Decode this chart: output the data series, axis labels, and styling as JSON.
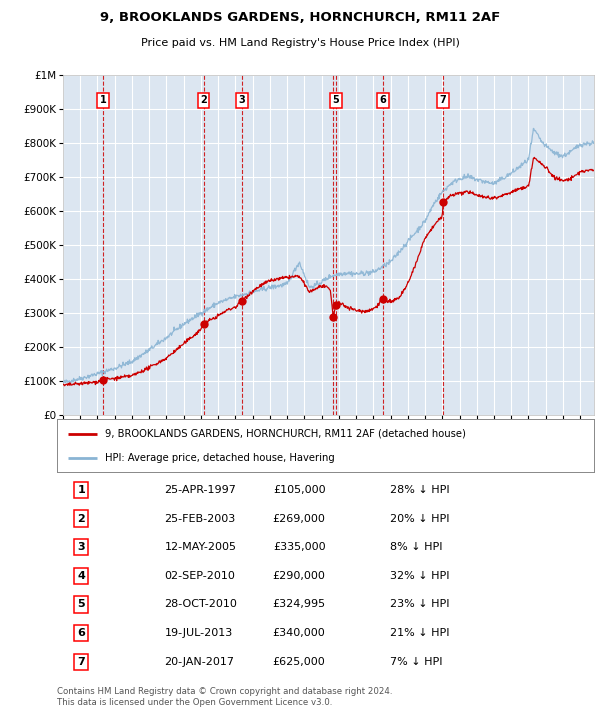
{
  "title_line1": "9, BROOKLANDS GARDENS, HORNCHURCH, RM11 2AF",
  "title_line2": "Price paid vs. HM Land Registry's House Price Index (HPI)",
  "background_color": "#ffffff",
  "plot_bg_color": "#dce6f1",
  "grid_color": "#ffffff",
  "hpi_line_color": "#8ab4d4",
  "price_line_color": "#cc0000",
  "dashed_line_color": "#cc0000",
  "sale_marker_color": "#cc0000",
  "ylim": [
    0,
    1000000
  ],
  "yticks": [
    0,
    100000,
    200000,
    300000,
    400000,
    500000,
    600000,
    700000,
    800000,
    900000,
    1000000
  ],
  "ytick_labels": [
    "£0",
    "£100K",
    "£200K",
    "£300K",
    "£400K",
    "£500K",
    "£600K",
    "£700K",
    "£800K",
    "£900K",
    "£1M"
  ],
  "xlim_start": 1995.0,
  "xlim_end": 2025.8,
  "sales": [
    {
      "num": 1,
      "year": 1997.32,
      "price": 105000
    },
    {
      "num": 2,
      "year": 2003.15,
      "price": 269000
    },
    {
      "num": 3,
      "year": 2005.37,
      "price": 335000
    },
    {
      "num": 4,
      "year": 2010.67,
      "price": 290000
    },
    {
      "num": 5,
      "year": 2010.83,
      "price": 324995
    },
    {
      "num": 6,
      "year": 2013.55,
      "price": 340000
    },
    {
      "num": 7,
      "year": 2017.05,
      "price": 625000
    }
  ],
  "show_label": [
    1,
    2,
    3,
    5,
    6,
    7
  ],
  "table_rows": [
    {
      "num": "1",
      "date": "25-APR-1997",
      "price": "£105,000",
      "hpi": "28% ↓ HPI"
    },
    {
      "num": "2",
      "date": "25-FEB-2003",
      "price": "£269,000",
      "hpi": "20% ↓ HPI"
    },
    {
      "num": "3",
      "date": "12-MAY-2005",
      "price": "£335,000",
      "hpi": "8% ↓ HPI"
    },
    {
      "num": "4",
      "date": "02-SEP-2010",
      "price": "£290,000",
      "hpi": "32% ↓ HPI"
    },
    {
      "num": "5",
      "date": "28-OCT-2010",
      "price": "£324,995",
      "hpi": "23% ↓ HPI"
    },
    {
      "num": "6",
      "date": "19-JUL-2013",
      "price": "£340,000",
      "hpi": "21% ↓ HPI"
    },
    {
      "num": "7",
      "date": "20-JAN-2017",
      "price": "£625,000",
      "hpi": "7% ↓ HPI"
    }
  ],
  "legend_label1": "9, BROOKLANDS GARDENS, HORNCHURCH, RM11 2AF (detached house)",
  "legend_label2": "HPI: Average price, detached house, Havering",
  "footer": "Contains HM Land Registry data © Crown copyright and database right 2024.\nThis data is licensed under the Open Government Licence v3.0."
}
